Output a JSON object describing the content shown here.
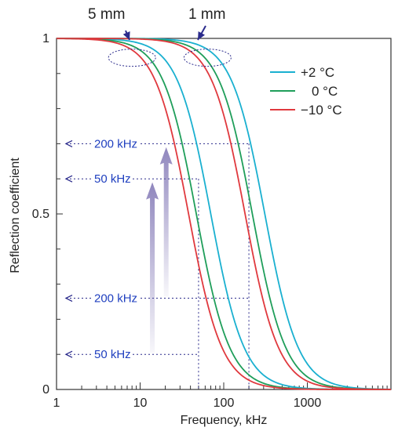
{
  "chart_data": {
    "type": "line",
    "xlabel": "Frequency, kHz",
    "ylabel": "Reflection coefficient",
    "xscale": "log",
    "xlim": [
      1,
      10000
    ],
    "ylim": [
      0,
      1
    ],
    "x_ticks": [
      1,
      10,
      100,
      1000
    ],
    "y_ticks": [
      0,
      0.5,
      1
    ],
    "y_tick_labels": [
      "0",
      "0.5",
      "1"
    ],
    "grid": false,
    "legend": {
      "placement": "top-right",
      "entries": [
        {
          "label": "+2 °C",
          "color": "#1ab0d0"
        },
        {
          "label": "0 °C",
          "color": "#1f9e5a"
        },
        {
          "label": "−10 °C",
          "color": "#e0393e"
        }
      ]
    },
    "series": [
      {
        "name": "+2 °C",
        "group": "5 mm",
        "color": "#1ab0d0",
        "midpoint_khz": 70,
        "x": [
          1,
          5,
          10,
          20,
          30,
          50,
          70,
          100,
          150,
          200,
          300,
          500,
          1000
        ],
        "y": [
          1.0,
          0.99,
          0.96,
          0.86,
          0.75,
          0.57,
          0.45,
          0.32,
          0.18,
          0.1,
          0.04,
          0.01,
          0.0
        ]
      },
      {
        "name": "0 °C",
        "group": "5 mm",
        "color": "#1f9e5a",
        "midpoint_khz": 47,
        "x": [
          1,
          5,
          10,
          20,
          30,
          47,
          70,
          100,
          150,
          200,
          300,
          500,
          1000
        ],
        "y": [
          1.0,
          0.98,
          0.93,
          0.78,
          0.66,
          0.5,
          0.34,
          0.21,
          0.1,
          0.05,
          0.02,
          0.0,
          0.0
        ]
      },
      {
        "name": "−10 °C",
        "group": "5 mm",
        "color": "#e0393e",
        "midpoint_khz": 38,
        "x": [
          1,
          5,
          10,
          20,
          30,
          38,
          50,
          70,
          100,
          150,
          200,
          300,
          500
        ],
        "y": [
          1.0,
          0.98,
          0.92,
          0.73,
          0.6,
          0.5,
          0.37,
          0.24,
          0.12,
          0.05,
          0.02,
          0.01,
          0.0
        ]
      },
      {
        "name": "+2 °C",
        "group": "1 mm",
        "color": "#1ab0d0",
        "midpoint_khz": 310,
        "x": [
          1,
          10,
          30,
          50,
          100,
          200,
          310,
          500,
          700,
          1000,
          2000,
          5000,
          10000
        ],
        "y": [
          1.0,
          1.0,
          0.98,
          0.95,
          0.84,
          0.66,
          0.5,
          0.3,
          0.18,
          0.08,
          0.01,
          0.0,
          0.0
        ]
      },
      {
        "name": "0 °C",
        "group": "1 mm",
        "color": "#1f9e5a",
        "midpoint_khz": 220,
        "x": [
          1,
          10,
          30,
          50,
          100,
          150,
          220,
          300,
          500,
          700,
          1000,
          2000,
          10000
        ],
        "y": [
          1.0,
          1.0,
          0.97,
          0.93,
          0.78,
          0.64,
          0.5,
          0.36,
          0.17,
          0.08,
          0.03,
          0.0,
          0.0
        ]
      },
      {
        "name": "−10 °C",
        "group": "1 mm",
        "color": "#e0393e",
        "midpoint_khz": 180,
        "x": [
          1,
          10,
          30,
          50,
          100,
          150,
          180,
          250,
          400,
          600,
          1000,
          2000,
          10000
        ],
        "y": [
          1.0,
          1.0,
          0.96,
          0.91,
          0.74,
          0.58,
          0.5,
          0.35,
          0.15,
          0.06,
          0.02,
          0.0,
          0.0
        ]
      }
    ],
    "annotations": {
      "thickness_labels": [
        "5 mm",
        "1 mm"
      ],
      "frequency_markers": [
        {
          "label": "200 kHz",
          "x": 200,
          "y": 0.7
        },
        {
          "label": "50 kHz",
          "x": 50,
          "y": 0.6
        },
        {
          "label": "200 kHz",
          "x": 200,
          "y": 0.26
        },
        {
          "label": "50 kHz",
          "x": 50,
          "y": 0.1
        }
      ]
    }
  }
}
